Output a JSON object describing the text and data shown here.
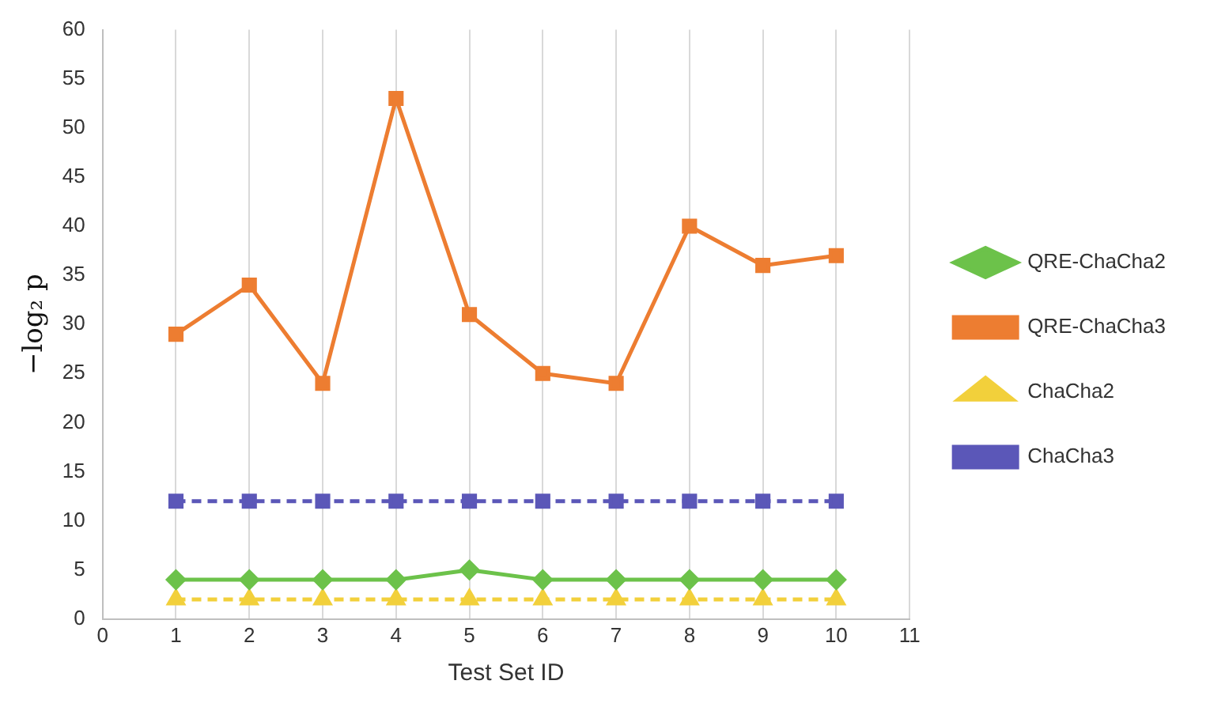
{
  "chart_data": {
    "type": "line",
    "xlabel": "Test Set ID",
    "ylabel": "−log₂ p",
    "x": [
      1,
      2,
      3,
      4,
      5,
      6,
      7,
      8,
      9,
      10
    ],
    "xlim": [
      0,
      11
    ],
    "xticks": [
      0,
      1,
      2,
      3,
      4,
      5,
      6,
      7,
      8,
      9,
      10,
      11
    ],
    "ylim": [
      0,
      60
    ],
    "yticks": [
      0,
      5,
      10,
      15,
      20,
      25,
      30,
      35,
      40,
      45,
      50,
      55,
      60
    ],
    "grid": "x",
    "legend": "right",
    "series": [
      {
        "name": "QRE-ChaCha2",
        "color": "#6cc24a",
        "marker": "diamond",
        "line_style": "solid",
        "values": [
          4,
          4,
          4,
          4,
          5,
          4,
          4,
          4,
          4,
          4
        ]
      },
      {
        "name": "QRE-ChaCha3",
        "color": "#ed7d31",
        "marker": "square",
        "line_style": "solid",
        "values": [
          29,
          34,
          24,
          53,
          31,
          25,
          24,
          40,
          36,
          37
        ]
      },
      {
        "name": "ChaCha2",
        "color": "#f2d03b",
        "marker": "triangle",
        "line_style": "dashed",
        "values": [
          2,
          2,
          2,
          2,
          2,
          2,
          2,
          2,
          2,
          2
        ]
      },
      {
        "name": "ChaCha3",
        "color": "#5b57b8",
        "marker": "square",
        "line_style": "dashed",
        "values": [
          12,
          12,
          12,
          12,
          12,
          12,
          12,
          12,
          12,
          12
        ]
      }
    ]
  }
}
